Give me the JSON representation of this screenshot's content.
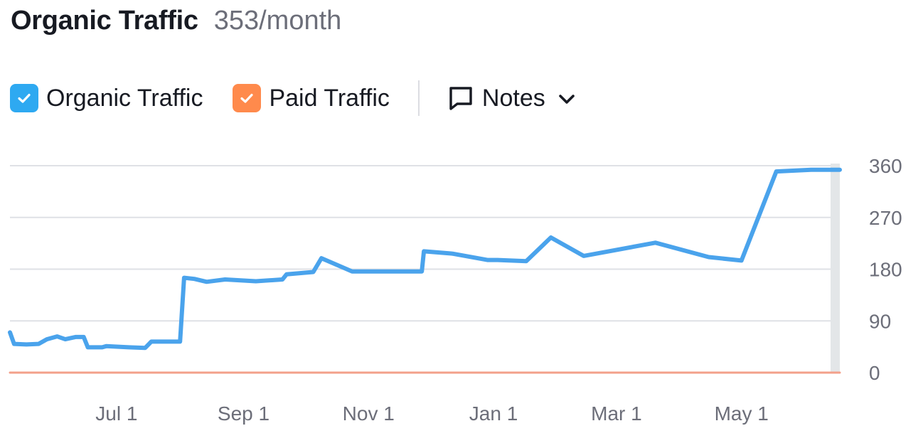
{
  "header": {
    "title": "Organic Traffic",
    "subtitle": "353/month"
  },
  "legend": {
    "items": [
      {
        "label": "Organic Traffic",
        "color": "#2ea9f1",
        "checked": true
      },
      {
        "label": "Paid Traffic",
        "color": "#ff8a4c",
        "checked": true
      }
    ],
    "notes_label": "Notes"
  },
  "chart_data": {
    "type": "line",
    "x_tick_labels": [
      "Jul 1",
      "Sep 1",
      "Nov 1",
      "Jan 1",
      "Mar 1",
      "May 1"
    ],
    "y_tick_labels": [
      "360",
      "270",
      "180",
      "90",
      "0"
    ],
    "ylim": [
      0,
      360
    ],
    "grid": true,
    "y_axis_side": "right",
    "series": [
      {
        "name": "Organic Traffic",
        "color": "#4aa3ec",
        "points": [
          [
            "2023-05-10",
            70
          ],
          [
            "2023-05-12",
            50
          ],
          [
            "2023-05-18",
            49
          ],
          [
            "2023-05-24",
            50
          ],
          [
            "2023-05-28",
            58
          ],
          [
            "2023-06-02",
            63
          ],
          [
            "2023-06-06",
            58
          ],
          [
            "2023-06-11",
            62
          ],
          [
            "2023-06-15",
            62
          ],
          [
            "2023-06-17",
            44
          ],
          [
            "2023-06-24",
            44
          ],
          [
            "2023-06-26",
            46
          ],
          [
            "2023-07-07",
            44
          ],
          [
            "2023-07-15",
            43
          ],
          [
            "2023-07-18",
            54
          ],
          [
            "2023-08-01",
            54
          ],
          [
            "2023-08-03",
            165
          ],
          [
            "2023-08-08",
            163
          ],
          [
            "2023-08-14",
            158
          ],
          [
            "2023-08-23",
            162
          ],
          [
            "2023-09-07",
            159
          ],
          [
            "2023-09-20",
            162
          ],
          [
            "2023-09-22",
            171
          ],
          [
            "2023-10-05",
            175
          ],
          [
            "2023-10-09",
            199
          ],
          [
            "2023-10-24",
            176
          ],
          [
            "2023-11-27",
            176
          ],
          [
            "2023-11-28",
            211
          ],
          [
            "2023-12-12",
            207
          ],
          [
            "2023-12-29",
            196
          ],
          [
            "2024-01-03",
            196
          ],
          [
            "2024-01-17",
            194
          ],
          [
            "2024-01-29",
            235
          ],
          [
            "2024-02-14",
            203
          ],
          [
            "2024-03-20",
            226
          ],
          [
            "2024-04-15",
            201
          ],
          [
            "2024-05-01",
            195
          ],
          [
            "2024-05-18",
            350
          ],
          [
            "2024-06-04",
            353
          ],
          [
            "2024-06-18",
            353
          ]
        ]
      },
      {
        "name": "Paid Traffic",
        "color": "#f3a08a",
        "points": [
          [
            "2023-05-10",
            0
          ],
          [
            "2024-06-18",
            0
          ]
        ]
      }
    ]
  }
}
